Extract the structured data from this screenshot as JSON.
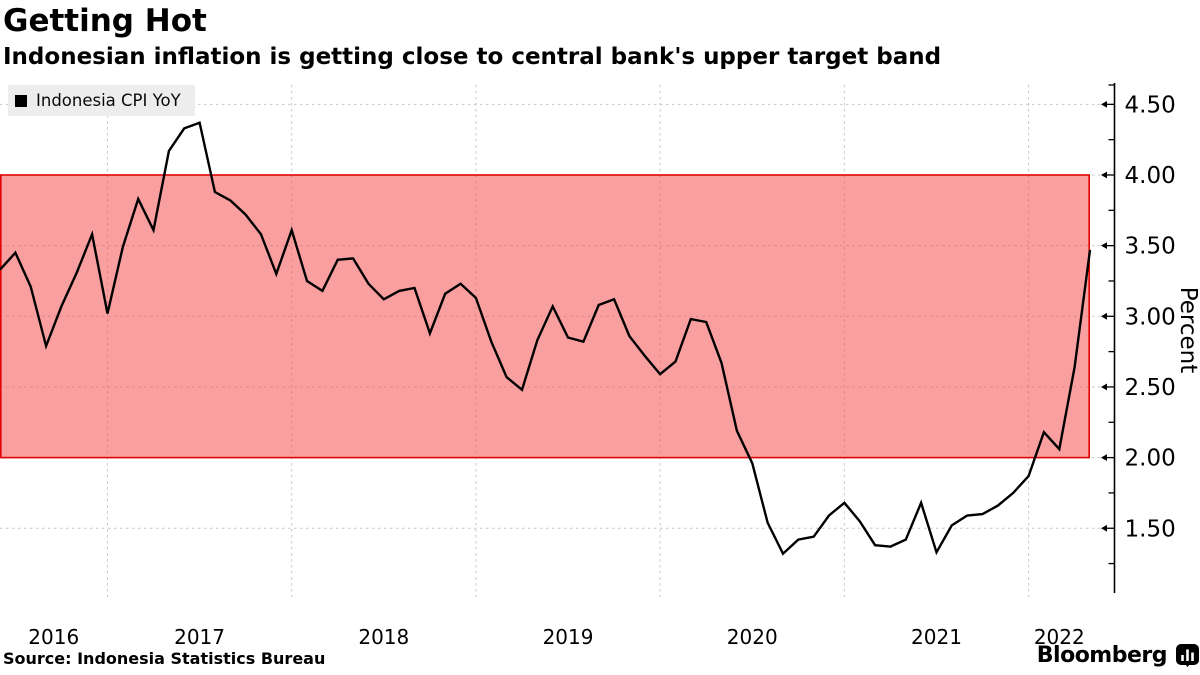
{
  "header": {
    "title": "Getting Hot",
    "subtitle": "Indonesian inflation is getting close to central bank's upper target band"
  },
  "legend": {
    "label": "Indonesia CPI YoY",
    "marker": "black-square"
  },
  "footer": {
    "source": "Source: Indonesia Statistics Bureau",
    "brand": "Bloomberg",
    "brand_icon": "bloomberg-chart-glyph"
  },
  "colors": {
    "line": "#000000",
    "band_fill": "rgba(243,70,70,0.52)",
    "band_border": "#e00505",
    "grid": "#c7c7c7",
    "axis": "#000000",
    "legend_bg": "#ededed"
  },
  "chart_data": {
    "type": "line",
    "title": "Getting Hot",
    "ylabel": "Percent",
    "grid": "dashed",
    "legend_position": "top-left",
    "y_major_ticks": [
      1.5,
      2.0,
      2.5,
      3.0,
      3.5,
      4.0,
      4.5
    ],
    "y_tick_labels": [
      "1.50",
      "2.00",
      "2.50",
      "3.00",
      "3.50",
      "4.00",
      "4.50"
    ],
    "y_minor_step": 0.25,
    "ylim": [
      1.07,
      4.65
    ],
    "x_year_labels": [
      "2016",
      "2017",
      "2018",
      "2019",
      "2020",
      "2021",
      "2022"
    ],
    "band": {
      "from": 2.0,
      "to": 4.0
    },
    "series": [
      {
        "name": "Indonesia CPI YoY",
        "frequency": "monthly",
        "start": "2016-05",
        "end": "2022-04",
        "values": [
          3.33,
          3.45,
          3.21,
          2.79,
          3.07,
          3.31,
          3.58,
          3.02,
          3.49,
          3.83,
          3.61,
          4.17,
          4.33,
          4.37,
          3.88,
          3.82,
          3.72,
          3.58,
          3.3,
          3.61,
          3.25,
          3.18,
          3.4,
          3.41,
          3.23,
          3.12,
          3.18,
          3.2,
          2.88,
          3.16,
          3.23,
          3.13,
          2.82,
          2.57,
          2.48,
          2.83,
          3.07,
          2.85,
          2.82,
          3.08,
          3.12,
          2.86,
          2.72,
          2.59,
          2.68,
          2.98,
          2.96,
          2.67,
          2.19,
          1.96,
          1.54,
          1.32,
          1.42,
          1.44,
          1.59,
          1.68,
          1.55,
          1.38,
          1.37,
          1.42,
          1.68,
          1.33,
          1.52,
          1.59,
          1.6,
          1.66,
          1.75,
          1.87,
          2.18,
          2.06,
          2.64,
          3.47
        ]
      }
    ]
  }
}
